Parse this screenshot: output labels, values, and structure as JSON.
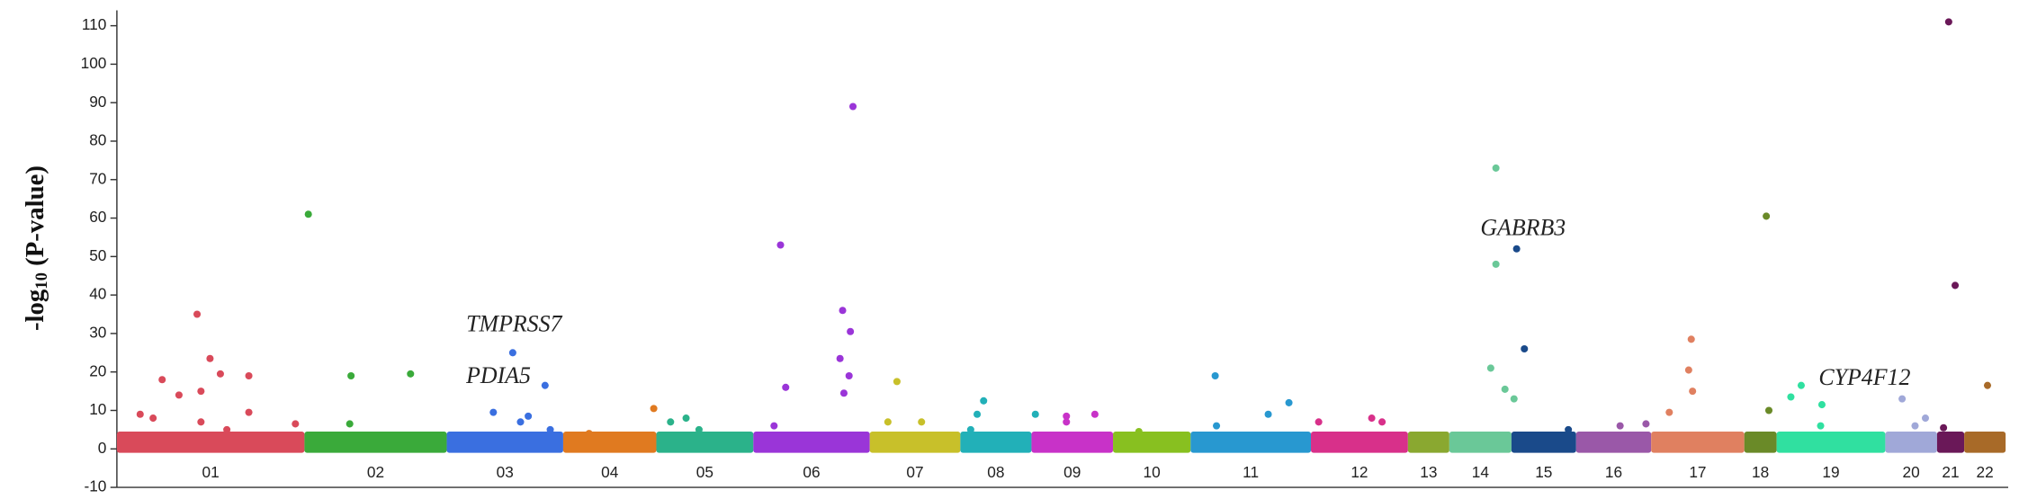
{
  "chart_data": {
    "type": "manhattan",
    "y_label": "-log",
    "y_label_sub": "10",
    "y_label_rest": "(P-value)",
    "ylim": [
      -10,
      114
    ],
    "yticks": [
      -10,
      0,
      10,
      20,
      30,
      40,
      50,
      60,
      70,
      80,
      90,
      100,
      110
    ],
    "xlim": [
      0,
      1460
    ],
    "categories": [
      "01",
      "02",
      "03",
      "04",
      "05",
      "06",
      "07",
      "08",
      "09",
      "10",
      "11",
      "12",
      "13",
      "14",
      "15",
      "16",
      "17",
      "18",
      "19",
      "20",
      "21",
      "22"
    ],
    "bounds": [
      0,
      145,
      255,
      345,
      417,
      492,
      582,
      652,
      707,
      770,
      830,
      923,
      998,
      1030,
      1078,
      1128,
      1186,
      1258,
      1283,
      1367,
      1407,
      1428,
      1460
    ],
    "band_max": 4.5,
    "series": [
      {
        "color": "#d94a5a",
        "x": [
          18,
          35,
          48,
          62,
          65,
          72,
          80,
          102,
          102,
          65,
          85,
          138,
          28
        ],
        "values": [
          9,
          18,
          14,
          35,
          15,
          23.5,
          19.5,
          19,
          9.5,
          7,
          5,
          6.5,
          8
        ]
      },
      {
        "color": "#3aaa3a",
        "x": [
          148,
          181,
          180,
          227
        ],
        "values": [
          61,
          19,
          6.5,
          19.5
        ]
      },
      {
        "color": "#3a6fe0",
        "x": [
          291,
          306,
          331,
          318,
          312,
          335
        ],
        "values": [
          9.5,
          25,
          16.5,
          8.5,
          7,
          5
        ]
      },
      {
        "color": "#e07a20",
        "x": [
          415,
          365
        ],
        "values": [
          10.5,
          4
        ]
      },
      {
        "color": "#2bb28a",
        "x": [
          428,
          440,
          450
        ],
        "values": [
          7,
          8,
          5
        ]
      },
      {
        "color": "#9a35d8",
        "x": [
          513,
          517,
          569,
          561,
          567,
          559,
          566,
          562,
          508
        ],
        "values": [
          53,
          16,
          89,
          36,
          30.5,
          23.5,
          19,
          14.5,
          6
        ]
      },
      {
        "color": "#c8c02a",
        "x": [
          603,
          596,
          622
        ],
        "values": [
          17.5,
          7,
          7
        ]
      },
      {
        "color": "#22b0b8",
        "x": [
          670,
          665,
          710,
          660
        ],
        "values": [
          12.5,
          9,
          9,
          5
        ]
      },
      {
        "color": "#c832c8",
        "x": [
          734,
          756,
          734
        ],
        "values": [
          8.5,
          9,
          7
        ]
      },
      {
        "color": "#88c020",
        "x": [
          790
        ],
        "values": [
          4.5
        ]
      },
      {
        "color": "#2898d0",
        "x": [
          849,
          850,
          906,
          890
        ],
        "values": [
          19,
          6,
          12,
          9
        ]
      },
      {
        "color": "#d8308a",
        "x": [
          929,
          970,
          978
        ],
        "values": [
          7,
          8,
          7
        ]
      },
      {
        "color": "#8aa830",
        "x": [],
        "values": []
      },
      {
        "color": "#6ac898",
        "x": [
          1066,
          1066,
          1062,
          1073,
          1080
        ],
        "values": [
          73,
          48,
          21,
          15.5,
          13
        ]
      },
      {
        "color": "#1a4a8a",
        "x": [
          1082,
          1088,
          1122
        ],
        "values": [
          52,
          26,
          5
        ]
      },
      {
        "color": "#9a58a8",
        "x": [
          1162,
          1182
        ],
        "values": [
          6,
          6.5
        ]
      },
      {
        "color": "#e08060",
        "x": [
          1217,
          1215,
          1218,
          1200
        ],
        "values": [
          28.5,
          20.5,
          15,
          9.5
        ]
      },
      {
        "color": "#6a8a28",
        "x": [
          1275,
          1277
        ],
        "values": [
          60.5,
          10
        ]
      },
      {
        "color": "#30e0a0",
        "x": [
          1294,
          1302,
          1318,
          1317
        ],
        "values": [
          13.5,
          16.5,
          11.5,
          6
        ]
      },
      {
        "color": "#a0a8d8",
        "x": [
          1380,
          1398,
          1390
        ],
        "values": [
          13,
          8,
          6
        ]
      },
      {
        "color": "#6a1858",
        "x": [
          1416,
          1421,
          1412
        ],
        "values": [
          111,
          42.5,
          5.5
        ]
      },
      {
        "color": "#a86a28",
        "x": [
          1446
        ],
        "values": [
          16.5
        ]
      }
    ],
    "annotations": [
      {
        "text": "TMPRSS7",
        "x": 307,
        "y": 32
      },
      {
        "text": "PDIA5",
        "x": 295,
        "y": 18.5
      },
      {
        "text": "GABRB3",
        "x": 1087,
        "y": 57
      },
      {
        "text": "CYP4F12",
        "x": 1351,
        "y": 18
      }
    ]
  }
}
